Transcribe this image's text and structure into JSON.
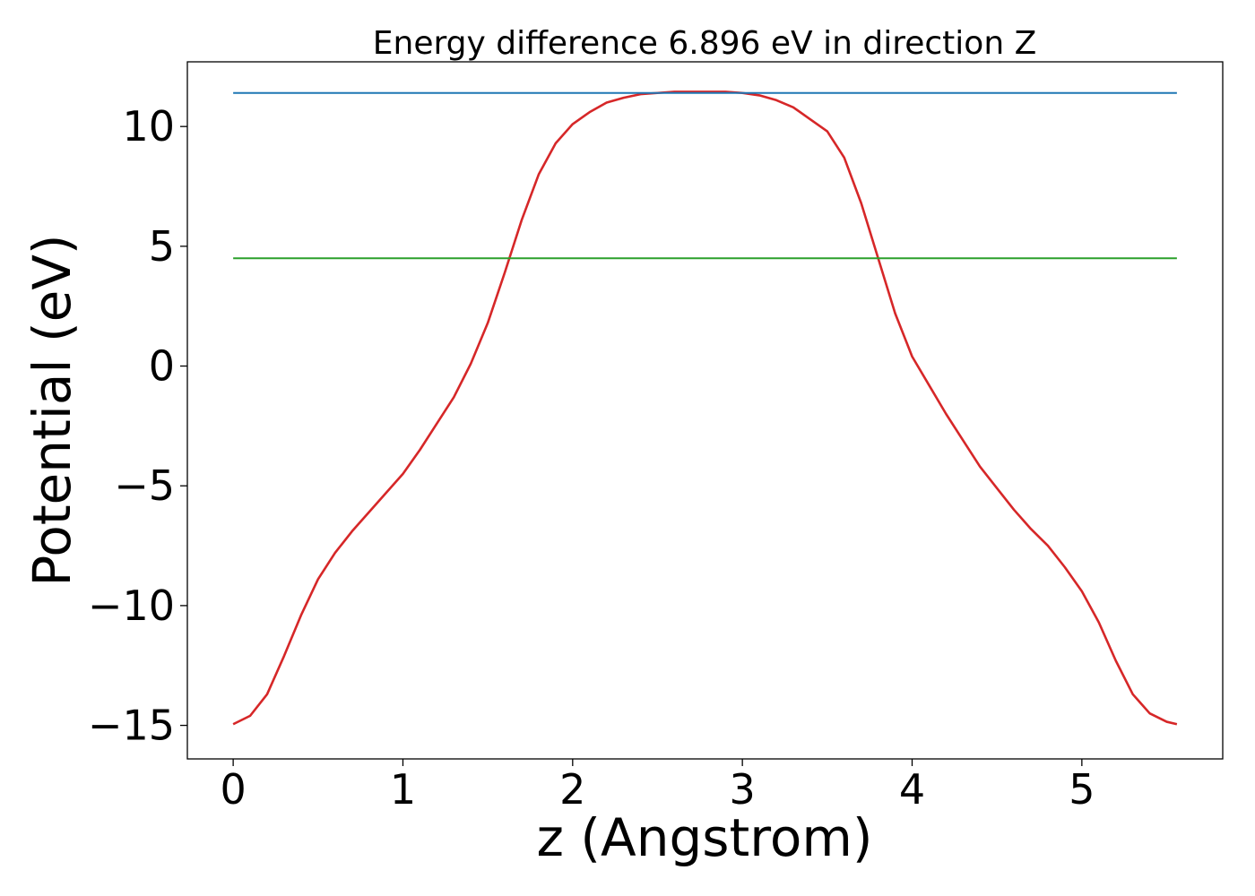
{
  "chart_data": {
    "type": "line",
    "title": "Energy difference 6.896 eV in direction Z",
    "xlabel": "z (Angstrom)",
    "ylabel": "Potential (eV)",
    "xlim": [
      -0.27,
      5.83
    ],
    "ylim": [
      -16.4,
      12.7
    ],
    "xticks": [
      0,
      1,
      2,
      3,
      4,
      5
    ],
    "xtick_labels": [
      "0",
      "1",
      "2",
      "3",
      "4",
      "5"
    ],
    "yticks": [
      -15,
      -10,
      -5,
      0,
      5,
      10
    ],
    "ytick_labels": [
      "−15",
      "−10",
      "−5",
      "0",
      "5",
      "10"
    ],
    "grid": false,
    "series": [
      {
        "color": "#d62728",
        "x": [
          0,
          0.1,
          0.2,
          0.3,
          0.4,
          0.5,
          0.6,
          0.7,
          0.8,
          0.9,
          1.0,
          1.1,
          1.2,
          1.3,
          1.4,
          1.5,
          1.6,
          1.7,
          1.8,
          1.9,
          2.0,
          2.1,
          2.2,
          2.3,
          2.4,
          2.5,
          2.6,
          2.7,
          2.8,
          2.9,
          3.0,
          3.1,
          3.2,
          3.3,
          3.4,
          3.5,
          3.6,
          3.7,
          3.8,
          3.9,
          4.0,
          4.1,
          4.2,
          4.3,
          4.4,
          4.5,
          4.6,
          4.7,
          4.8,
          4.9,
          5.0,
          5.1,
          5.2,
          5.3,
          5.4,
          5.5,
          5.56
        ],
        "y": [
          -14.95,
          -14.6,
          -13.7,
          -12.1,
          -10.4,
          -8.9,
          -7.8,
          -6.9,
          -6.1,
          -5.3,
          -4.5,
          -3.5,
          -2.4,
          -1.3,
          0.1,
          1.8,
          3.9,
          6.1,
          8.0,
          9.3,
          10.1,
          10.6,
          11.0,
          11.2,
          11.35,
          11.4,
          11.45,
          11.45,
          11.45,
          11.45,
          11.4,
          11.3,
          11.1,
          10.8,
          10.3,
          9.8,
          8.7,
          6.8,
          4.5,
          2.2,
          0.4,
          -0.8,
          -2.0,
          -3.1,
          -4.2,
          -5.1,
          -6.0,
          -6.8,
          -7.5,
          -8.4,
          -9.4,
          -10.7,
          -12.3,
          -13.7,
          -14.5,
          -14.85,
          -14.95
        ]
      },
      {
        "color": "#1f77b4",
        "x": [
          0,
          5.56
        ],
        "y": [
          11.4,
          11.4
        ]
      },
      {
        "color": "#2ca02c",
        "x": [
          0,
          5.56
        ],
        "y": [
          4.5,
          4.5
        ]
      }
    ]
  }
}
